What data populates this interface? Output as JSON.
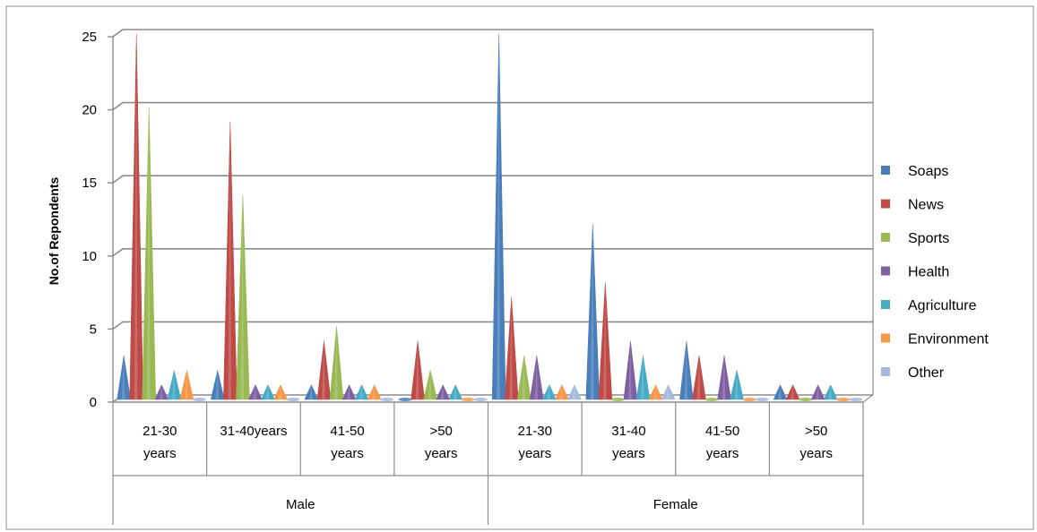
{
  "chart_data": {
    "type": "bar",
    "title": "",
    "xlabel": "",
    "ylabel": "No.of Repondents",
    "ylim": [
      0,
      25
    ],
    "yticks": [
      0,
      5,
      10,
      15,
      20,
      25
    ],
    "grid": true,
    "legend_position": "right",
    "groups": [
      {
        "label": "Male",
        "categories": [
          "21-30 years",
          "31-40years",
          "41-50 years",
          ">50 years"
        ]
      },
      {
        "label": "Female",
        "categories": [
          "21-30 years",
          "31-40 years",
          "41-50 years",
          ">50 years"
        ]
      }
    ],
    "categories": [
      "Male 21-30 years",
      "Male 31-40years",
      "Male 41-50 years",
      "Male >50 years",
      "Female 21-30 years",
      "Female 31-40 years",
      "Female 41-50 years",
      "Female >50 years"
    ],
    "series": [
      {
        "name": "Soaps",
        "color": "#4a7ebb",
        "values": [
          3,
          2,
          1,
          0,
          25,
          12,
          4,
          1
        ]
      },
      {
        "name": "News",
        "color": "#be4b48",
        "values": [
          25,
          19,
          4,
          4,
          7,
          8,
          3,
          1
        ]
      },
      {
        "name": "Sports",
        "color": "#98b954",
        "values": [
          20,
          14,
          5,
          2,
          3,
          0,
          0,
          0
        ]
      },
      {
        "name": "Health",
        "color": "#7d60a0",
        "values": [
          1,
          1,
          1,
          1,
          3,
          4,
          3,
          1
        ]
      },
      {
        "name": "Agriculture",
        "color": "#46aac5",
        "values": [
          2,
          1,
          1,
          1,
          1,
          3,
          2,
          1
        ]
      },
      {
        "name": "Environment",
        "color": "#f79646",
        "values": [
          2,
          1,
          1,
          0,
          1,
          1,
          0,
          0
        ]
      },
      {
        "name": "Other",
        "color": "#a5b9dc",
        "values": [
          0,
          0,
          0,
          0,
          1,
          1,
          0,
          0
        ]
      }
    ]
  }
}
